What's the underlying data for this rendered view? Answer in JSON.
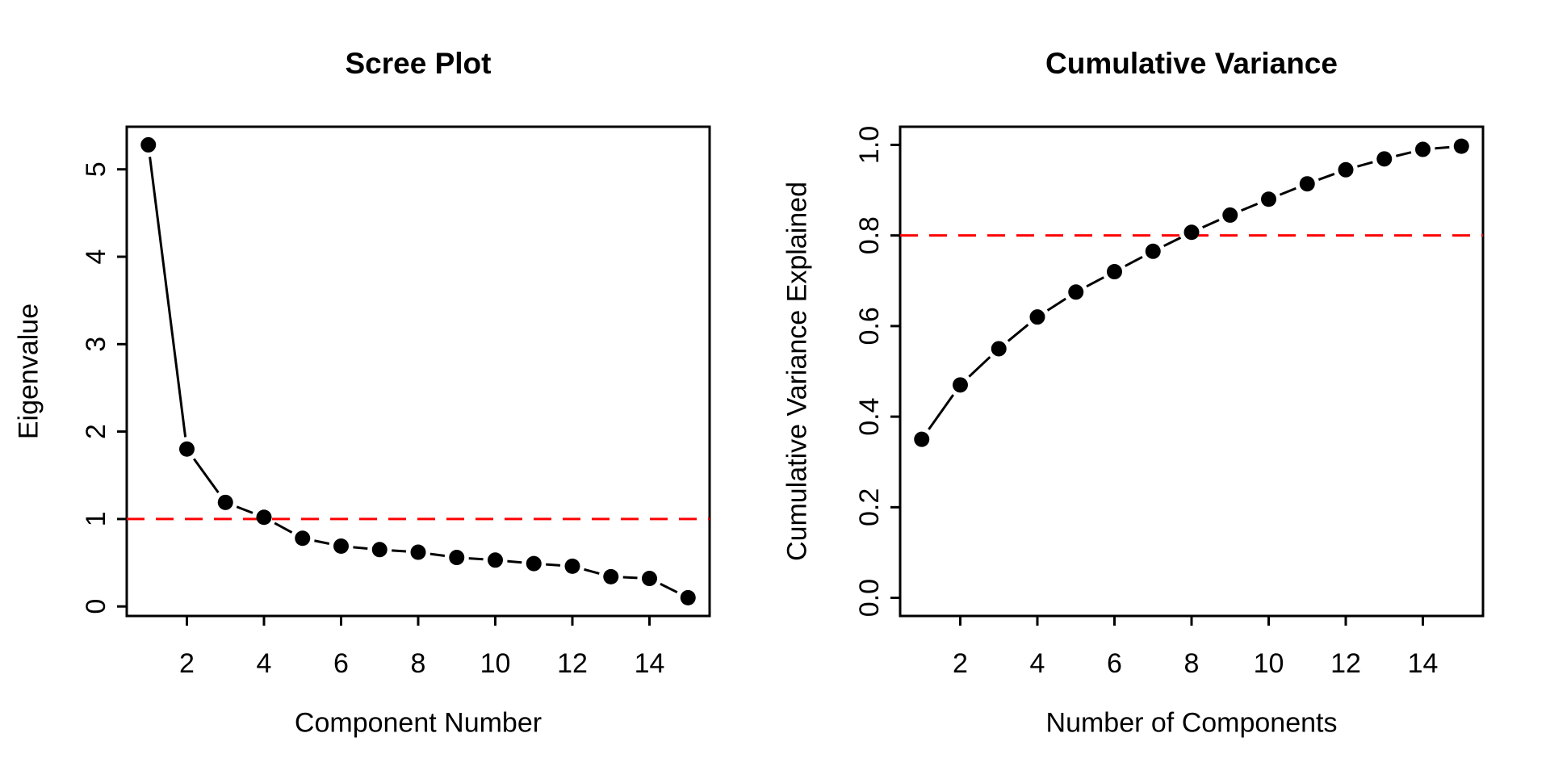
{
  "figure": {
    "background_color": "#ffffff",
    "foreground_color": "#000000",
    "threshold_color": "#ff0000"
  },
  "left_panel": {
    "title": "Scree Plot",
    "xlabel": "Component Number",
    "ylabel": "Eigenvalue"
  },
  "right_panel": {
    "title": "Cumulative Variance",
    "xlabel": "Number of Components",
    "ylabel": "Cumulative Variance Explained"
  },
  "chart_data": [
    {
      "type": "line",
      "title": "Scree Plot",
      "xlabel": "Component Number",
      "ylabel": "Eigenvalue",
      "x": [
        1,
        2,
        3,
        4,
        5,
        6,
        7,
        8,
        9,
        10,
        11,
        12,
        13,
        14,
        15
      ],
      "values": [
        5.28,
        1.8,
        1.19,
        1.02,
        0.78,
        0.69,
        0.65,
        0.62,
        0.56,
        0.53,
        0.49,
        0.46,
        0.34,
        0.32,
        0.1
      ],
      "series_name": "Eigenvalue",
      "point_style": "filled-circle",
      "line_style": "segments-with-point-gaps",
      "x_ticks": [
        2,
        4,
        6,
        8,
        10,
        12,
        14
      ],
      "x_tick_labels": [
        "2",
        "4",
        "6",
        "8",
        "10",
        "12",
        "14"
      ],
      "y_ticks": [
        0,
        1,
        2,
        3,
        4,
        5
      ],
      "y_tick_labels": [
        "0",
        "1",
        "2",
        "3",
        "4",
        "5"
      ],
      "xlim": [
        0.44,
        15.56
      ],
      "ylim": [
        -0.109,
        5.487
      ],
      "grid": false,
      "legend": false,
      "threshold_line": {
        "y": 1.0,
        "color": "#ff0000",
        "style": "dashed"
      }
    },
    {
      "type": "line",
      "title": "Cumulative Variance",
      "xlabel": "Number of Components",
      "ylabel": "Cumulative Variance Explained",
      "x": [
        1,
        2,
        3,
        4,
        5,
        6,
        7,
        8,
        9,
        10,
        11,
        12,
        13,
        14,
        15
      ],
      "values": [
        0.35,
        0.47,
        0.55,
        0.62,
        0.675,
        0.72,
        0.765,
        0.807,
        0.845,
        0.88,
        0.914,
        0.945,
        0.969,
        0.99,
        0.997
      ],
      "series_name": "Cumulative Variance Explained",
      "point_style": "filled-circle",
      "line_style": "segments-with-point-gaps",
      "x_ticks": [
        2,
        4,
        6,
        8,
        10,
        12,
        14
      ],
      "x_tick_labels": [
        "2",
        "4",
        "6",
        "8",
        "10",
        "12",
        "14"
      ],
      "y_ticks": [
        0.0,
        0.2,
        0.4,
        0.6,
        0.8,
        1.0
      ],
      "y_tick_labels": [
        "0.0",
        "0.2",
        "0.4",
        "0.6",
        "0.8",
        "1.0"
      ],
      "xlim": [
        0.44,
        15.56
      ],
      "ylim": [
        -0.04,
        1.04
      ],
      "grid": false,
      "legend": false,
      "threshold_line": {
        "y": 0.8,
        "color": "#ff0000",
        "style": "dashed"
      }
    }
  ]
}
